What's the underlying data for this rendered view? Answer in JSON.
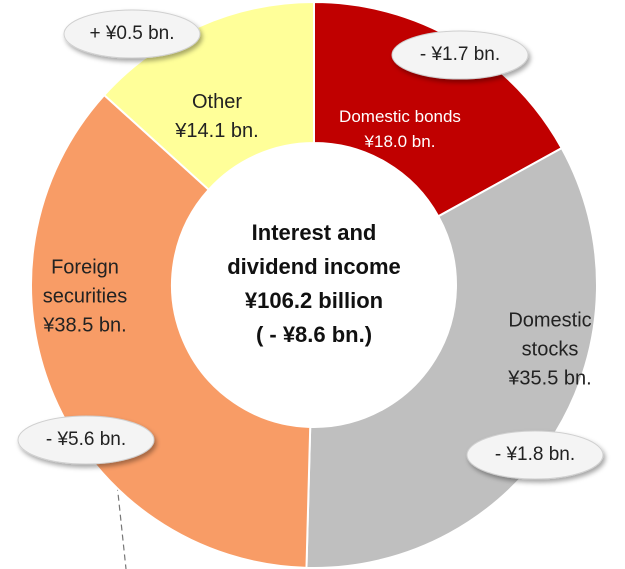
{
  "chart_data": {
    "type": "donut",
    "categories": [
      [
        "Domestic bonds"
      ],
      [
        "Domestic",
        "stocks"
      ],
      [
        "Foreign",
        "securities"
      ],
      [
        "Other"
      ]
    ],
    "values": [
      18.0,
      35.5,
      38.5,
      14.1
    ],
    "value_labels": [
      "¥18.0 bn.",
      "¥35.5 bn.",
      "¥38.5 bn.",
      "¥14.1 bn."
    ],
    "colors": [
      "#c00000",
      "#bfbfbf",
      "#f89c66",
      "#ffff99"
    ],
    "label_colors": [
      "#ffffff",
      "#222222",
      "#222222",
      "#222222"
    ],
    "changes": [
      -1.7,
      -1.8,
      -5.6,
      0.5
    ],
    "change_labels": [
      "- ¥1.7 bn.",
      "- ¥1.8 bn.",
      "- ¥5.6 bn.",
      "+ ¥0.5 bn."
    ],
    "center_text": [
      "Interest and",
      "dividend income",
      "¥106.2 billion",
      "( - ¥8.6 bn.)"
    ]
  }
}
